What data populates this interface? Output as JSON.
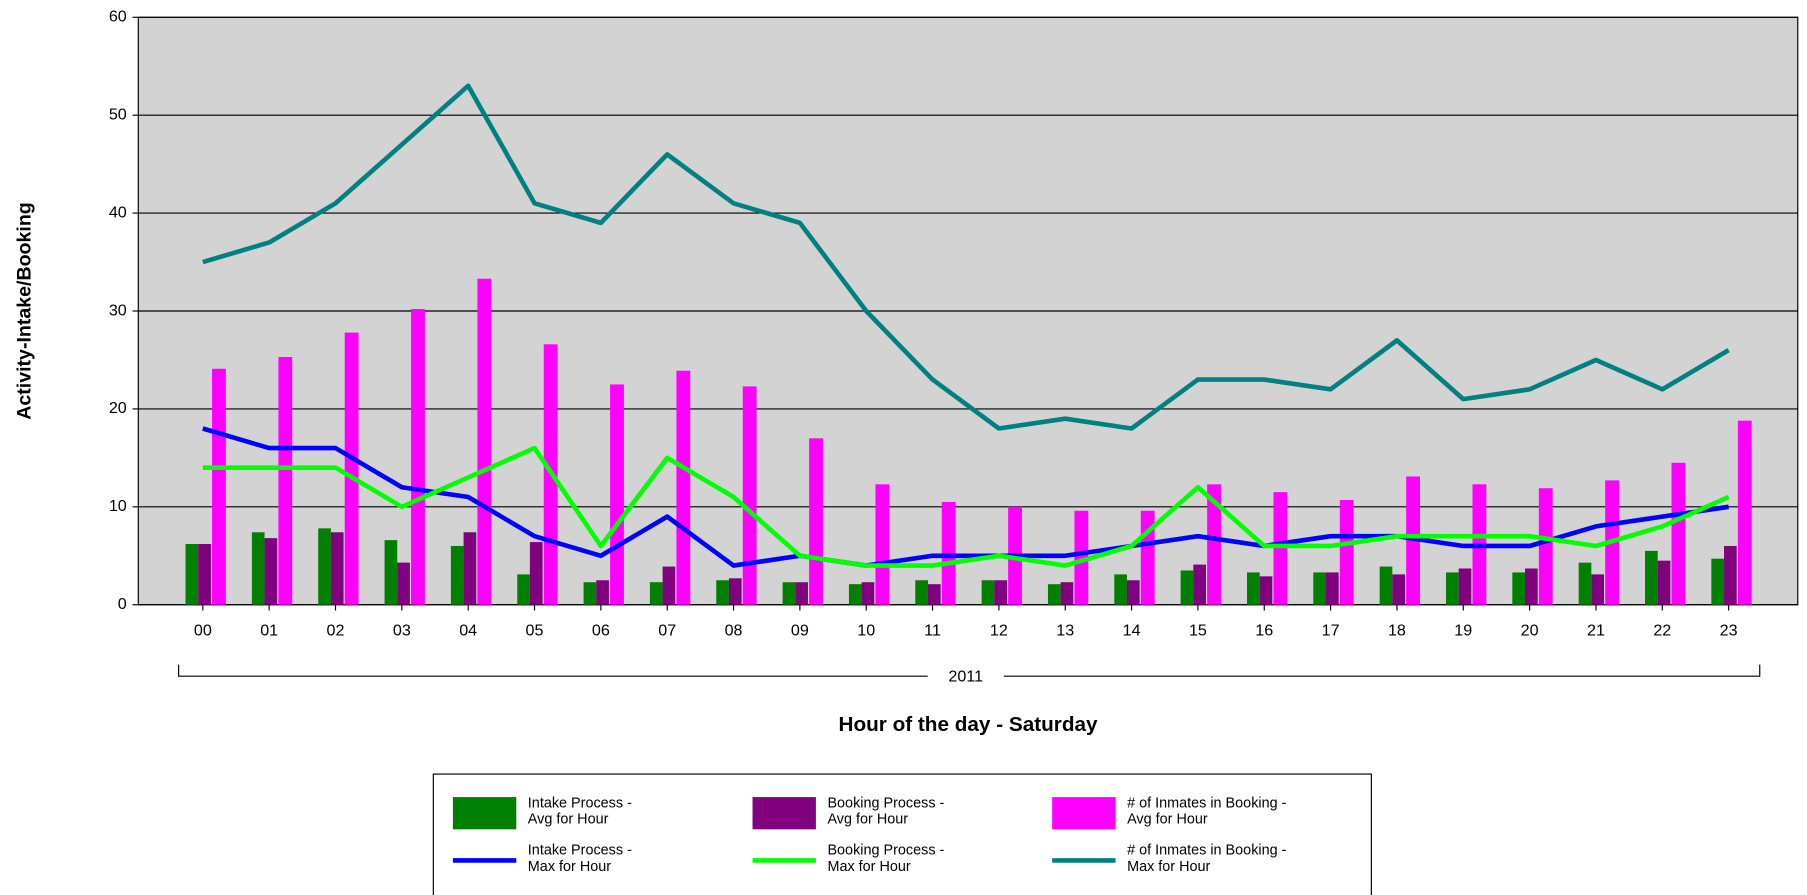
{
  "chart_data": {
    "type": "bar",
    "ylabel": "Activity-Intake/Booking",
    "xlabel": "Hour of the day - Saturday",
    "group_label": "2011",
    "categories": [
      "00",
      "01",
      "02",
      "03",
      "04",
      "05",
      "06",
      "07",
      "08",
      "09",
      "10",
      "11",
      "12",
      "13",
      "14",
      "15",
      "16",
      "17",
      "18",
      "19",
      "20",
      "21",
      "22",
      "23"
    ],
    "ylim": [
      0,
      60
    ],
    "yticks": [
      0,
      10,
      20,
      30,
      40,
      50,
      60
    ],
    "grid": true,
    "legend": "bottom",
    "series": [
      {
        "name": "Intake Process - Avg for Hour",
        "type": "bar",
        "color": "#008000",
        "values": [
          6.2,
          7.4,
          7.8,
          6.6,
          6,
          3.1,
          2.3,
          2.3,
          2.5,
          2.3,
          2.1,
          2.5,
          2.5,
          2.1,
          3.1,
          3.5,
          3.3,
          3.3,
          3.9,
          3.3,
          3.3,
          4.3,
          5.5,
          4.7
        ]
      },
      {
        "name": "Booking Process - Avg for Hour",
        "type": "bar",
        "color": "#800080",
        "values": [
          6.2,
          6.8,
          7.4,
          4.3,
          7.4,
          6.4,
          2.5,
          3.9,
          2.7,
          2.3,
          2.3,
          2.1,
          2.5,
          2.3,
          2.5,
          4.1,
          2.9,
          3.3,
          3.1,
          3.7,
          3.7,
          3.1,
          4.5,
          6.0
        ]
      },
      {
        "name": "# of Inmates in Booking - Avg for Hour",
        "type": "bar",
        "color": "#ff00ff",
        "values": [
          24.1,
          25.3,
          27.8,
          30.2,
          33.3,
          26.6,
          22.5,
          23.9,
          22.3,
          17.0,
          12.3,
          10.5,
          10.0,
          9.6,
          9.6,
          12.3,
          11.5,
          10.7,
          13.1,
          12.3,
          11.9,
          12.7,
          14.5,
          18.8
        ]
      },
      {
        "name": "Intake Process - Max for Hour",
        "type": "line",
        "color": "#0000ff",
        "values": [
          18,
          16,
          16,
          12,
          11,
          7,
          5,
          9,
          4,
          5,
          4,
          5,
          5,
          5,
          6,
          7,
          6,
          7,
          7,
          6,
          6,
          8,
          9,
          10
        ]
      },
      {
        "name": "Booking Process - Max for Hour",
        "type": "line",
        "color": "#00ff00",
        "values": [
          14,
          14,
          14,
          10,
          13,
          16,
          6,
          15,
          11,
          5,
          4,
          4,
          5,
          4,
          6,
          12,
          6,
          6,
          7,
          7,
          7,
          6,
          8,
          11
        ]
      },
      {
        "name": "# of Inmates in Booking - Max for Hour",
        "type": "line",
        "color": "#008080",
        "values": [
          35,
          37,
          41,
          47,
          53,
          41,
          39,
          46,
          41,
          39,
          30,
          23,
          18,
          19,
          18,
          23,
          23,
          22,
          27,
          21,
          22,
          25,
          22,
          26
        ]
      }
    ]
  }
}
